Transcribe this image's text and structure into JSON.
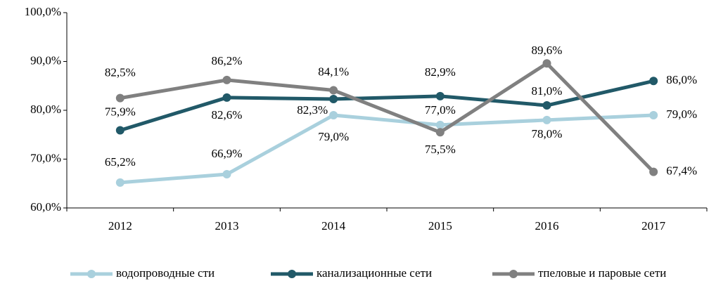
{
  "chart_data": {
    "type": "line",
    "categories": [
      "2012",
      "2013",
      "2014",
      "2015",
      "2016",
      "2017"
    ],
    "series": [
      {
        "name": "водопроводные сти",
        "color": "#a9d0dd",
        "values": [
          65.2,
          66.9,
          79.0,
          77.0,
          78.0,
          79.0
        ],
        "value_labels": [
          "65,2%",
          "66,9%",
          "79,0%",
          "77,0%",
          "78,0%",
          "79,0%"
        ]
      },
      {
        "name": "канализационные сети",
        "color": "#215968",
        "values": [
          75.9,
          82.6,
          82.3,
          82.9,
          81.0,
          86.0
        ],
        "value_labels": [
          "75,9%",
          "82,6%",
          "82,3%",
          "82,9%",
          "81,0%",
          "86,0%"
        ]
      },
      {
        "name": "тпеловые и паровые сети",
        "color": "#808080",
        "values": [
          82.5,
          86.2,
          84.1,
          75.5,
          89.6,
          67.4
        ],
        "value_labels": [
          "82,5%",
          "86,2%",
          "84,1%",
          "75,5%",
          "89,6%",
          "67,4%"
        ]
      }
    ],
    "ylim": [
      60,
      100
    ],
    "yticks": [
      {
        "value": 60,
        "label": "60,0%"
      },
      {
        "value": 70,
        "label": "70,0%"
      },
      {
        "value": 80,
        "label": "80,0%"
      },
      {
        "value": 90,
        "label": "90,0%"
      },
      {
        "value": 100,
        "label": "100,0%"
      }
    ],
    "legend": "bottom"
  }
}
